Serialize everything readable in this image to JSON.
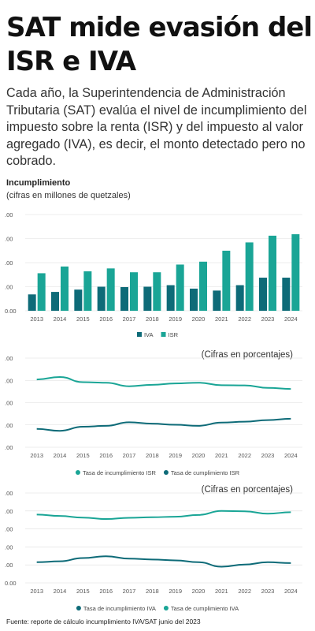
{
  "header": {
    "title": "SAT mide evasión del ISR e IVA",
    "intro": "Cada año, la Superintendencia de Administración Tributaria (SAT) evalúa el nivel de incumplimiento del impuesto sobre la renta (ISR) y del impuesto al valor agregado (IVA), es decir, el monto detectado pero no cobrado."
  },
  "footer": {
    "source": "Fuente: reporte de cálculo incumplimiento IVA/SAT junio del 2023"
  },
  "colors": {
    "iva_dark": "#0e6b78",
    "isr_light": "#1aa596",
    "grid": "#dddddd"
  },
  "chart_data": [
    {
      "type": "bar",
      "title": "Incumplimiento",
      "subtitle": "(cifras en millones de quetzales)",
      "categories": [
        "2013",
        "2014",
        "2015",
        "2016",
        "2017",
        "2018",
        "2019",
        "2020",
        "2021",
        "2022",
        "2023",
        "2024"
      ],
      "yticks": [
        "0.00",
        ".00",
        ".00",
        ".00",
        ".00"
      ],
      "ylim": [
        0,
        5
      ],
      "series": [
        {
          "name": "IVA",
          "color": "#0e6b78",
          "values": [
            0.85,
            0.98,
            1.1,
            1.25,
            1.23,
            1.25,
            1.33,
            1.15,
            1.05,
            1.33,
            1.72,
            1.72
          ]
        },
        {
          "name": "ISR",
          "color": "#1aa596",
          "values": [
            1.95,
            2.3,
            2.05,
            2.2,
            2.0,
            2.0,
            2.4,
            2.55,
            3.12,
            3.55,
            3.9,
            3.98
          ]
        }
      ],
      "legend": "bottom"
    },
    {
      "type": "line",
      "note": "(Cifras en porcentajes)",
      "categories": [
        "2013",
        "2014",
        "2015",
        "2016",
        "2017",
        "2018",
        "2019",
        "2020",
        "2021",
        "2022",
        "2023",
        "2024"
      ],
      "yticks": [
        ".00",
        ".00",
        ".00",
        ".00",
        ".00"
      ],
      "ylim": [
        0,
        5
      ],
      "series": [
        {
          "name": "Tasa de incumplimiento ISR",
          "color": "#1aa596",
          "values": [
            3.8,
            3.94,
            3.65,
            3.62,
            3.42,
            3.5,
            3.58,
            3.62,
            3.48,
            3.47,
            3.33,
            3.27
          ]
        },
        {
          "name": "Tasa de cumplimiento ISR",
          "color": "#0e6b78",
          "values": [
            1.03,
            0.92,
            1.15,
            1.2,
            1.4,
            1.32,
            1.26,
            1.2,
            1.38,
            1.43,
            1.52,
            1.6
          ]
        }
      ],
      "legend": "bottom"
    },
    {
      "type": "line",
      "note": "(Cifras en porcentajes)",
      "categories": [
        "2013",
        "2014",
        "2015",
        "2016",
        "2017",
        "2018",
        "2019",
        "2020",
        "2021",
        "2022",
        "2023",
        "2024"
      ],
      "yticks": [
        "0.00",
        ".00",
        ".00",
        ".00",
        ".00",
        ".00"
      ],
      "ylim": [
        0,
        5
      ],
      "series": [
        {
          "name": "Tasa de incumplimiento IVA",
          "color": "#0e6b78",
          "values": [
            1.15,
            1.2,
            1.38,
            1.48,
            1.35,
            1.3,
            1.25,
            1.15,
            0.9,
            1.02,
            1.15,
            1.1
          ]
        },
        {
          "name": "Tasa de cumplimiento IVA",
          "color": "#1aa596",
          "values": [
            3.8,
            3.72,
            3.63,
            3.55,
            3.62,
            3.65,
            3.68,
            3.78,
            4.0,
            3.98,
            3.85,
            3.93
          ]
        }
      ],
      "legend": "bottom"
    }
  ]
}
